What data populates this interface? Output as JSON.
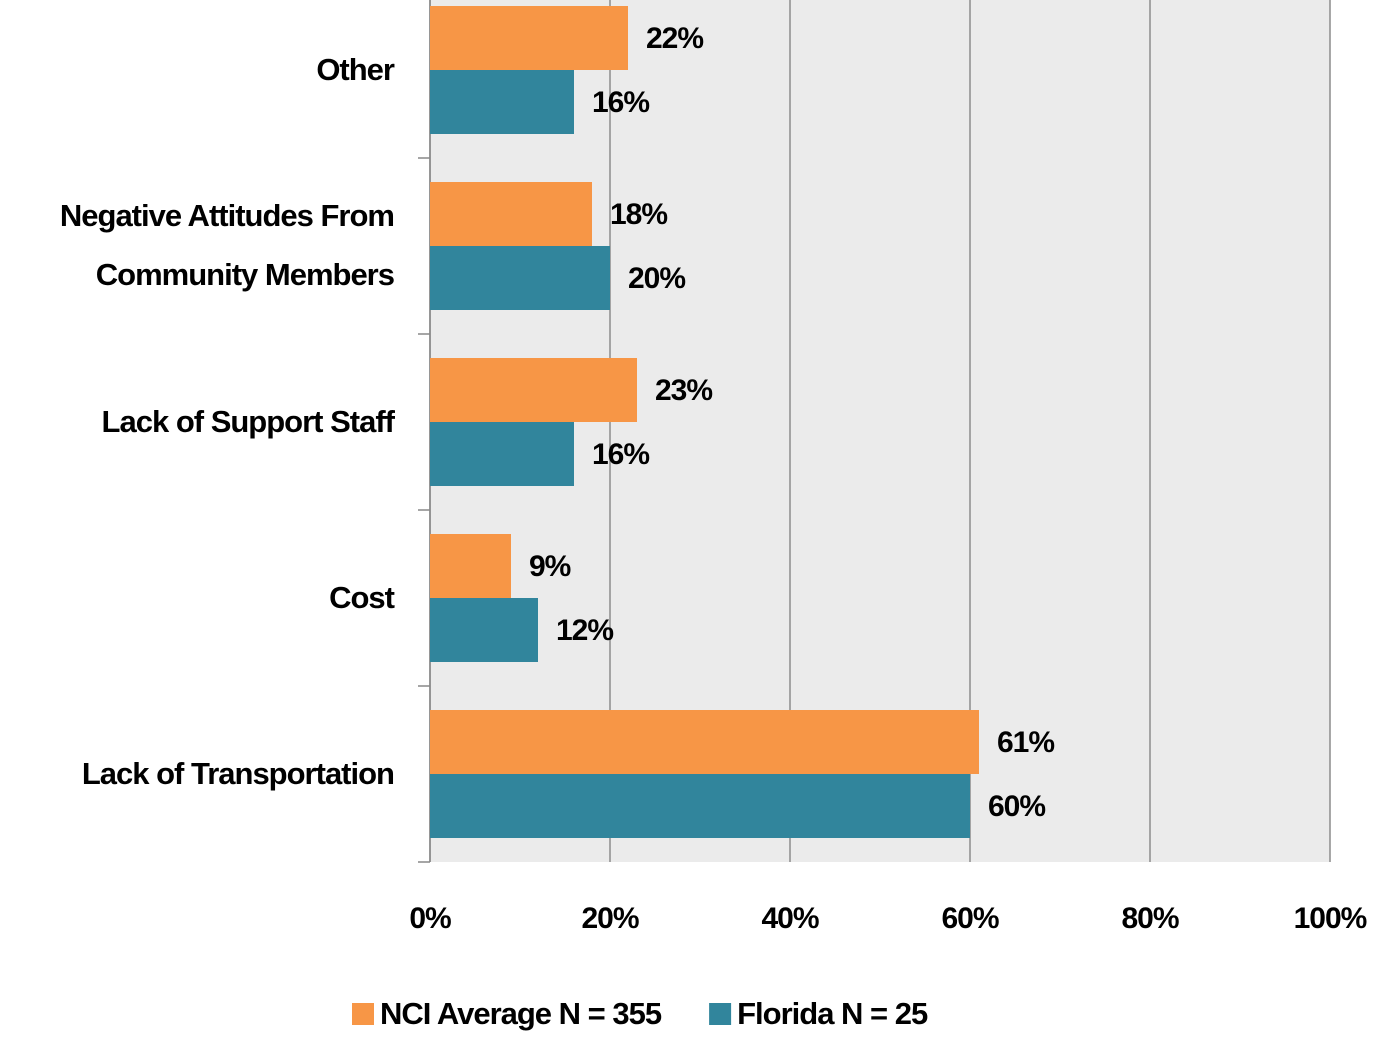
{
  "chart_data": {
    "type": "hbar",
    "categories": [
      "Other",
      "Negative Attitudes From Community Members",
      "Lack of Support Staff",
      "Cost",
      "Lack of Transportation"
    ],
    "series": [
      {
        "name": "NCI Average N = 355",
        "color": "#f79646",
        "values": [
          22,
          18,
          23,
          9,
          61
        ],
        "value_labels": [
          "22%",
          "18%",
          "23%",
          "9%",
          "61%"
        ]
      },
      {
        "name": "Florida N = 25",
        "color": "#31859c",
        "values": [
          16,
          20,
          16,
          12,
          60
        ],
        "value_labels": [
          "16%",
          "20%",
          "16%",
          "12%",
          "60%"
        ]
      }
    ],
    "xlim": [
      0,
      100
    ],
    "xticks": [
      {
        "value": 0,
        "label": "0%"
      },
      {
        "value": 20,
        "label": "20%"
      },
      {
        "value": 40,
        "label": "40%"
      },
      {
        "value": 60,
        "label": "60%"
      },
      {
        "value": 80,
        "label": "80%"
      },
      {
        "value": 100,
        "label": "100%"
      }
    ],
    "grid": true,
    "legend": "bottom"
  }
}
